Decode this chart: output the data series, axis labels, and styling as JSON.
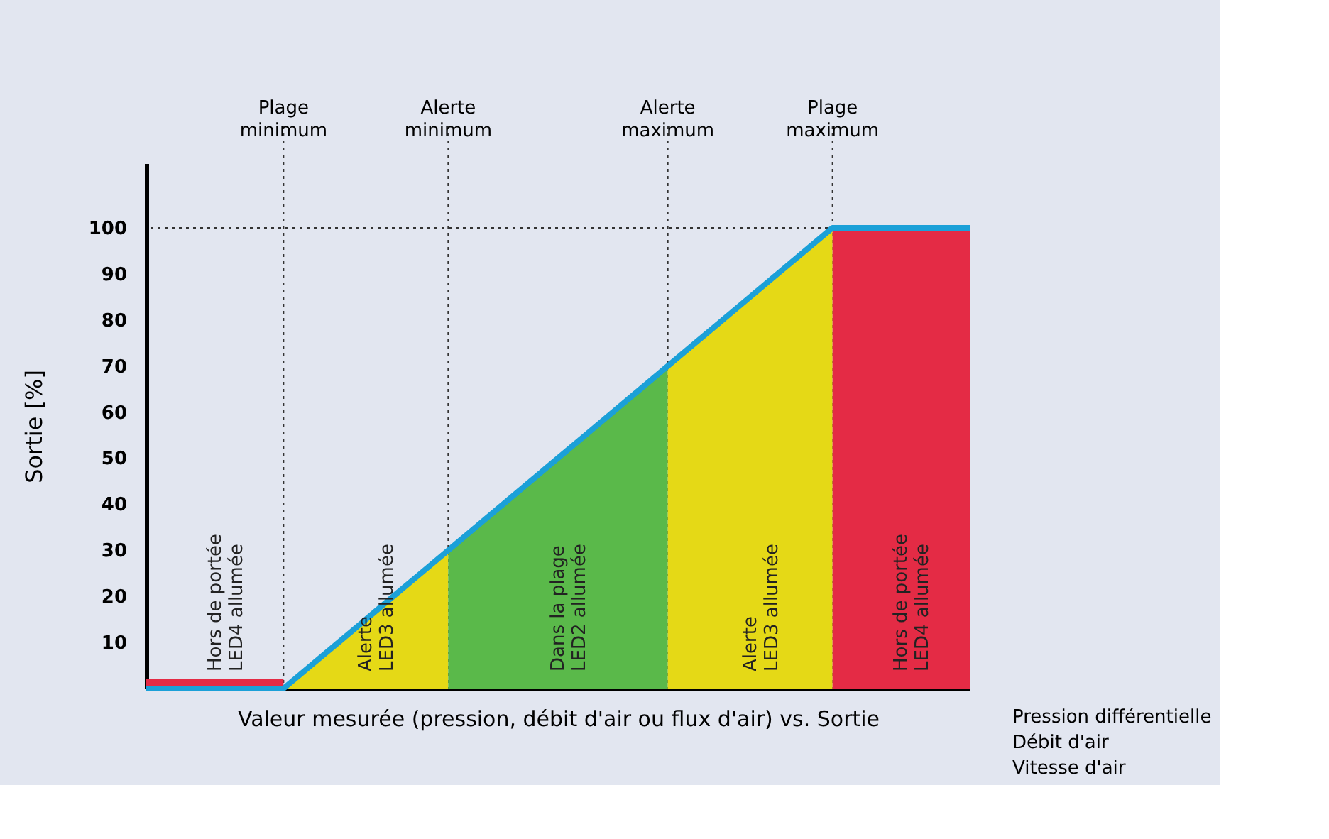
{
  "chart_data": {
    "type": "line",
    "ylabel": "Sortie [%]",
    "xlabel": "Valeur mesurée (pression, débit d'air ou flux d'air) vs. Sortie",
    "ylim": [
      0,
      114
    ],
    "yticks": [
      10,
      20,
      30,
      40,
      50,
      60,
      70,
      80,
      90,
      100
    ],
    "grid": "x",
    "line_style": "solid",
    "categories": [
      null,
      null,
      null,
      null,
      null,
      "Plage\nminimum",
      null,
      null,
      null,
      null,
      null,
      "Alerte\nminimum",
      null,
      null,
      null,
      null,
      null,
      null,
      null,
      "Alerte\nmaximum",
      null,
      null,
      null,
      null,
      null,
      "Plage\nmaximum",
      null,
      null,
      null,
      null,
      null
    ],
    "series": [
      {
        "type": "area",
        "color": "#e42b45",
        "values": [
          2,
          2,
          2,
          2,
          2,
          2,
          null,
          null,
          null,
          null,
          null,
          null,
          null,
          null,
          null,
          null,
          null,
          null,
          null,
          null,
          null,
          null,
          null,
          null,
          null,
          null,
          null,
          null,
          null,
          null,
          null
        ]
      },
      {
        "type": "area",
        "color": "#e5d916",
        "values": [
          null,
          null,
          null,
          null,
          null,
          0,
          5,
          10,
          15,
          20,
          25,
          30,
          null,
          null,
          null,
          null,
          null,
          null,
          null,
          null,
          null,
          null,
          null,
          null,
          null,
          null,
          null,
          null,
          null,
          null,
          null
        ]
      },
      {
        "type": "area",
        "color": "#5ab94a",
        "values": [
          null,
          null,
          null,
          null,
          null,
          null,
          null,
          null,
          null,
          null,
          null,
          30,
          35,
          40,
          45,
          50,
          55,
          60,
          65,
          70,
          null,
          null,
          null,
          null,
          null,
          null,
          null,
          null,
          null,
          null,
          null
        ]
      },
      {
        "type": "area",
        "color": "#e5d916",
        "values": [
          null,
          null,
          null,
          null,
          null,
          null,
          null,
          null,
          null,
          null,
          null,
          null,
          null,
          null,
          null,
          null,
          null,
          null,
          null,
          70,
          75,
          80,
          85,
          90,
          95,
          100,
          null,
          null,
          null,
          null,
          null
        ]
      },
      {
        "type": "area",
        "color": "#e42b45",
        "values": [
          null,
          null,
          null,
          null,
          null,
          null,
          null,
          null,
          null,
          null,
          null,
          null,
          null,
          null,
          null,
          null,
          null,
          null,
          null,
          null,
          null,
          null,
          null,
          null,
          null,
          100,
          100,
          100,
          100,
          100,
          100
        ]
      },
      {
        "color": "#1ba0d8",
        "values": [
          0,
          0,
          0,
          0,
          0,
          0,
          5,
          10,
          15,
          20,
          25,
          30,
          35,
          40,
          45,
          50,
          55,
          60,
          65,
          70,
          75,
          80,
          85,
          90,
          95,
          100,
          100,
          100,
          100,
          100,
          100
        ]
      }
    ],
    "ref_lines": [
      {
        "axis": "y",
        "value": 100,
        "label": null,
        "line_style": "dotted"
      }
    ],
    "annotations": [
      "Hors de portée\nLED4 allumée",
      "Alerte\nLED3 allumée",
      "Dans la plage\nLED2 allumée",
      "Alerte\nLED3 allumée",
      "Hors de portée\nLED4 allumée",
      "Pression différentielle\nDébit d'air\nVitesse d'air"
    ]
  }
}
